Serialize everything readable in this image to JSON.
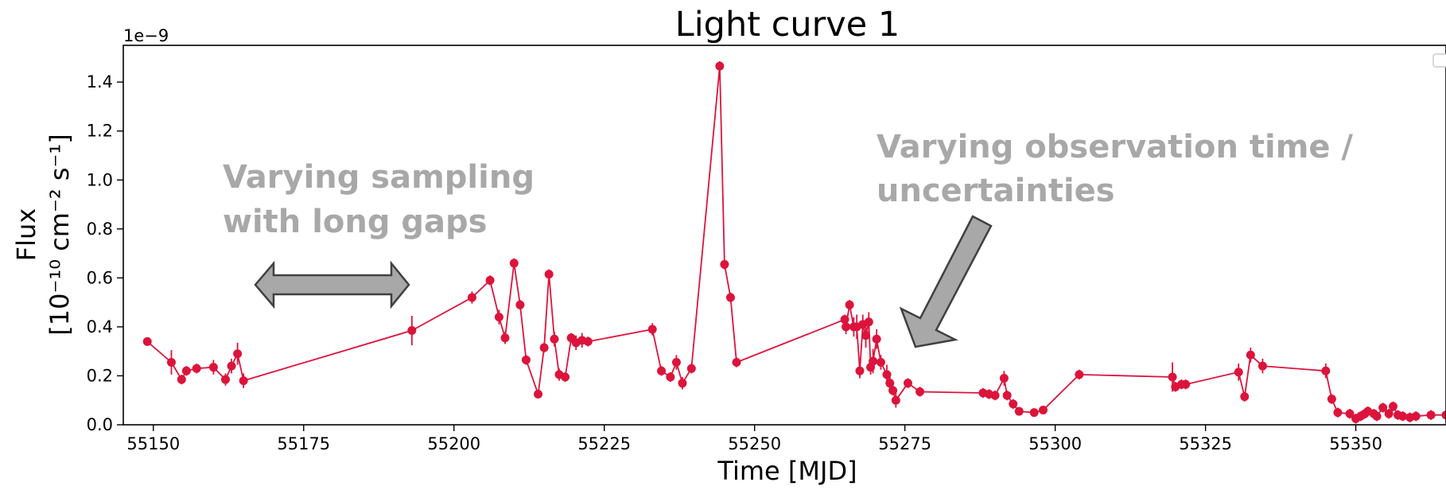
{
  "chart_data": {
    "type": "line",
    "title": "Light curve 1",
    "xlabel": "Time [MJD]",
    "ylabel_line1": "Flux",
    "ylabel_line2": "[10⁻¹⁰ cm⁻² s⁻¹]",
    "y_offset_label": "1e−9",
    "xlim": [
      55145,
      55365
    ],
    "ylim": [
      0,
      1.55
    ],
    "x_ticks": [
      55150,
      55175,
      55200,
      55225,
      55250,
      55275,
      55300,
      55325,
      55350
    ],
    "x_tick_labels": [
      "55150",
      "55175",
      "55200",
      "55225",
      "55250",
      "55275",
      "55300",
      "55325",
      "55350"
    ],
    "y_ticks": [
      0.0,
      0.2,
      0.4,
      0.6,
      0.8,
      1.0,
      1.2,
      1.4
    ],
    "y_tick_labels": [
      "0.0",
      "0.2",
      "0.4",
      "0.6",
      "0.8",
      "1.0",
      "1.2",
      "1.4"
    ],
    "grid": false,
    "legend": "top-right (empty)",
    "series": [
      {
        "color": "#dc143c",
        "x": [
          55149,
          55153,
          55154.7,
          55155.5,
          55157.2,
          55160,
          55162,
          55163,
          55164,
          55165,
          55193,
          55203,
          55206,
          55207.5,
          55208.5,
          55210,
          55211,
          55212,
          55214,
          55215,
          55215.8,
          55216.7,
          55217.5,
          55218.5,
          55219.5,
          55220.3,
          55221.3,
          55222.3,
          55233,
          55234.5,
          55236,
          55237,
          55238,
          55239.5,
          55244.2,
          55245,
          55246,
          55247,
          55265,
          55265.2,
          55265.8,
          55266.5,
          55267,
          55267.5,
          55268,
          55268.5,
          55269,
          55269.3,
          55269.7,
          55270.3,
          55271,
          55272,
          55272.5,
          55273,
          55273.5,
          55275.5,
          55277.5,
          55288,
          55289,
          55290,
          55291.5,
          55292,
          55293,
          55294,
          55296.5,
          55298,
          55304,
          55319.5,
          55320,
          55321,
          55321.7,
          55330.5,
          55331.5,
          55332.5,
          55334.5,
          55345,
          55346,
          55347,
          55349,
          55350,
          55350.8,
          55351.5,
          55352,
          55353,
          55353.5,
          55354.5,
          55355.5,
          55356.2,
          55357,
          55357.8,
          55359,
          55360,
          55362.5,
          55365
        ],
        "y": [
          0.34,
          0.255,
          0.185,
          0.22,
          0.23,
          0.235,
          0.185,
          0.24,
          0.29,
          0.18,
          0.385,
          0.52,
          0.59,
          0.44,
          0.355,
          0.66,
          0.49,
          0.265,
          0.125,
          0.315,
          0.615,
          0.35,
          0.205,
          0.195,
          0.355,
          0.335,
          0.345,
          0.34,
          0.39,
          0.22,
          0.195,
          0.255,
          0.17,
          0.23,
          1.465,
          0.655,
          0.52,
          0.255,
          0.43,
          0.4,
          0.49,
          0.4,
          0.4,
          0.22,
          0.41,
          0.365,
          0.42,
          0.235,
          0.26,
          0.35,
          0.255,
          0.205,
          0.17,
          0.14,
          0.1,
          0.17,
          0.135,
          0.13,
          0.125,
          0.12,
          0.19,
          0.12,
          0.085,
          0.055,
          0.05,
          0.06,
          0.205,
          0.195,
          0.155,
          0.165,
          0.165,
          0.215,
          0.115,
          0.285,
          0.24,
          0.22,
          0.105,
          0.05,
          0.045,
          0.025,
          0.035,
          0.045,
          0.055,
          0.045,
          0.035,
          0.07,
          0.045,
          0.075,
          0.04,
          0.035,
          0.03,
          0.035,
          0.04,
          0.04
        ],
        "yerr": [
          0.015,
          0.05,
          0.02,
          0.02,
          0.02,
          0.03,
          0.025,
          0.03,
          0.045,
          0.03,
          0.06,
          0.025,
          0.02,
          0.03,
          0.025,
          0.02,
          0.02,
          0.02,
          0.015,
          0.02,
          0.02,
          0.03,
          0.025,
          0.02,
          0.02,
          0.03,
          0.03,
          0.02,
          0.025,
          0.02,
          0.02,
          0.03,
          0.025,
          0.02,
          0.02,
          0.02,
          0.02,
          0.02,
          0.02,
          0.03,
          0.02,
          0.04,
          0.05,
          0.03,
          0.04,
          0.05,
          0.04,
          0.03,
          0.05,
          0.04,
          0.03,
          0.04,
          0.03,
          0.02,
          0.03,
          0.02,
          0.02,
          0.02,
          0.02,
          0.02,
          0.03,
          0.02,
          0.02,
          0.015,
          0.015,
          0.015,
          0.02,
          0.06,
          0.02,
          0.02,
          0.02,
          0.035,
          0.02,
          0.03,
          0.03,
          0.03,
          0.02,
          0.02,
          0.02,
          0.02,
          0.02,
          0.02,
          0.02,
          0.02,
          0.02,
          0.02,
          0.02,
          0.02,
          0.02,
          0.02,
          0.02,
          0.02,
          0.02,
          0.02
        ]
      }
    ]
  },
  "annotations": {
    "left_note_line1": "Varying sampling",
    "left_note_line2": "with long gaps",
    "right_note_line1": "Varying observation time /",
    "right_note_line2": "uncertainties"
  }
}
